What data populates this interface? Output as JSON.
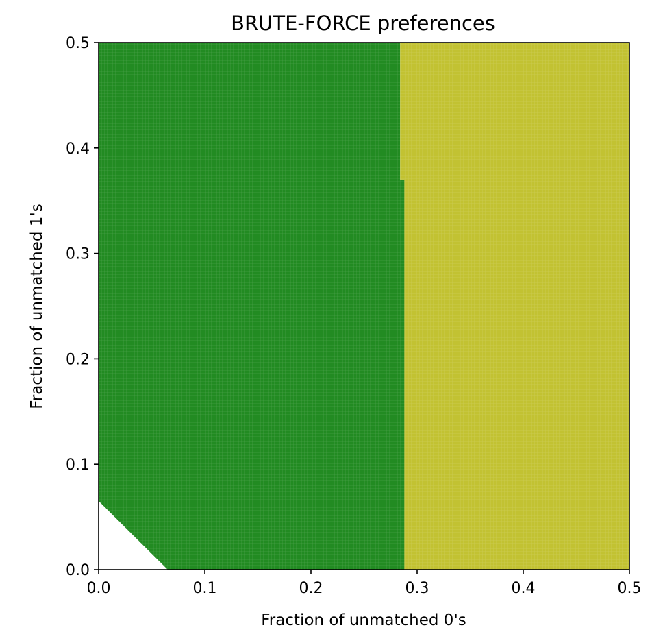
{
  "chart_data": {
    "type": "heatmap",
    "title": "BRUTE-FORCE preferences",
    "xlabel": "Fraction of unmatched 0's",
    "ylabel": "Fraction of unmatched 1's",
    "xlim": [
      0.0,
      0.5
    ],
    "ylim": [
      0.0,
      0.5
    ],
    "xticks": [
      "0.0",
      "0.1",
      "0.2",
      "0.3",
      "0.4",
      "0.5"
    ],
    "yticks": [
      "0.0",
      "0.1",
      "0.2",
      "0.3",
      "0.4",
      "0.5"
    ],
    "grid": false,
    "legend": "none",
    "colors": {
      "region_a": "#228b22",
      "region_b": "#c2c232",
      "unfilled": "#ffffff",
      "cell_line": "#ffffff"
    },
    "regions": [
      {
        "color_key": "region_a",
        "polygon": [
          [
            0.0,
            0.065
          ],
          [
            0.065,
            0.0
          ],
          [
            0.288,
            0.0
          ],
          [
            0.288,
            0.37
          ],
          [
            0.284,
            0.37
          ],
          [
            0.284,
            0.5
          ],
          [
            0.0,
            0.5
          ]
        ]
      },
      {
        "color_key": "region_b",
        "polygon": [
          [
            0.288,
            0.0
          ],
          [
            0.5,
            0.0
          ],
          [
            0.5,
            0.5
          ],
          [
            0.284,
            0.5
          ],
          [
            0.284,
            0.37
          ],
          [
            0.288,
            0.37
          ]
        ]
      }
    ],
    "empty_region": [
      [
        0.0,
        0.0
      ],
      [
        0.065,
        0.0
      ],
      [
        0.0,
        0.065
      ]
    ]
  }
}
